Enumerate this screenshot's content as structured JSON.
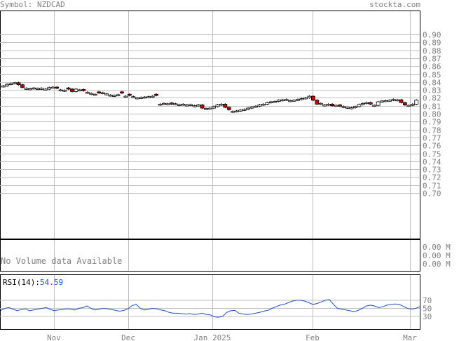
{
  "header": {
    "symbol_label": "Symbol: NZDCAD",
    "site": "stockta.com"
  },
  "volume": {
    "message": "No Volume data Available",
    "ticks": [
      "0.00 M",
      "0.00 M",
      "0.00 M"
    ]
  },
  "rsi": {
    "label_prefix": "RSI(14):",
    "value": "54.59",
    "ticks": [
      70,
      50,
      30
    ]
  },
  "colors": {
    "down_candle": "#cc0000",
    "up_candle": "#ffffff",
    "rsi_line": "#1f4fbf",
    "grid": "#c0c0c0",
    "axis_text": "#808080"
  },
  "chart_data": {
    "type": "candlestick",
    "title": "",
    "price_axis": {
      "ylim": [
        0.69,
        0.91
      ],
      "ticks": [
        0.9,
        0.89,
        0.88,
        0.87,
        0.86,
        0.85,
        0.84,
        0.83,
        0.82,
        0.81,
        0.8,
        0.79,
        0.78,
        0.77,
        0.76,
        0.75,
        0.74,
        0.73,
        0.72,
        0.71,
        0.7
      ]
    },
    "x_axis": {
      "labels": [
        "Nov",
        "Dec",
        "Jan 2025",
        "Feb",
        "Mar"
      ]
    },
    "grid": true,
    "close": [
      0.835,
      0.837,
      0.838,
      0.839,
      0.8365,
      0.833,
      0.832,
      0.8315,
      0.8325,
      0.8318,
      0.832,
      0.831,
      0.833,
      0.8335,
      0.832,
      0.83,
      0.8295,
      0.831,
      0.828,
      0.831,
      0.83,
      0.829,
      0.827,
      0.8255,
      0.8245,
      0.826,
      0.8265,
      0.825,
      0.8235,
      0.823,
      0.824,
      0.826,
      0.822,
      0.823,
      0.8215,
      0.82,
      0.8205,
      0.821,
      0.8215,
      0.822,
      0.823,
      0.812,
      0.813,
      0.8125,
      0.812,
      0.8125,
      0.8115,
      0.812,
      0.811,
      0.8115,
      0.81,
      0.811,
      0.807,
      0.8065,
      0.807,
      0.809,
      0.811,
      0.812,
      0.808,
      0.805,
      0.803,
      0.8035,
      0.8045,
      0.8055,
      0.807,
      0.8085,
      0.8095,
      0.811,
      0.812,
      0.814,
      0.815,
      0.8155,
      0.817,
      0.8175,
      0.818,
      0.8165,
      0.817,
      0.818,
      0.819,
      0.82,
      0.822,
      0.817,
      0.812,
      0.813,
      0.811,
      0.812,
      0.81,
      0.8105,
      0.8095,
      0.809,
      0.808,
      0.8075,
      0.809,
      0.8115,
      0.813,
      0.814,
      0.812,
      0.8105,
      0.815,
      0.816,
      0.8165,
      0.817,
      0.818,
      0.8175,
      0.814,
      0.811,
      0.8105,
      0.812,
      0.817
    ],
    "down_days": [
      4,
      5,
      14,
      17,
      18,
      21,
      25,
      31,
      33,
      40,
      44,
      52,
      58,
      59,
      81,
      82,
      86,
      88,
      96,
      104,
      105
    ],
    "rsi_values": [
      45,
      50,
      52,
      48,
      44,
      47,
      49,
      44,
      46,
      48,
      50,
      52,
      48,
      44,
      46,
      47,
      49,
      48,
      46,
      50,
      52,
      56,
      50,
      46,
      48,
      50,
      49,
      47,
      45,
      43,
      45,
      49,
      57,
      60,
      50,
      46,
      48,
      50,
      49,
      46,
      44,
      40,
      38,
      38,
      37,
      36,
      37,
      35,
      36,
      38,
      35,
      34,
      29,
      28,
      30,
      40,
      44,
      45,
      38,
      36,
      35,
      36,
      38,
      40,
      43,
      45,
      50,
      54,
      58,
      60,
      64,
      68,
      70,
      70,
      68,
      64,
      60,
      62,
      66,
      70,
      72,
      60,
      50,
      48,
      46,
      44,
      42,
      45,
      50,
      56,
      58,
      56,
      52,
      54,
      58,
      60,
      61,
      60,
      55,
      50,
      48,
      50,
      54
    ],
    "volume_available": false
  }
}
